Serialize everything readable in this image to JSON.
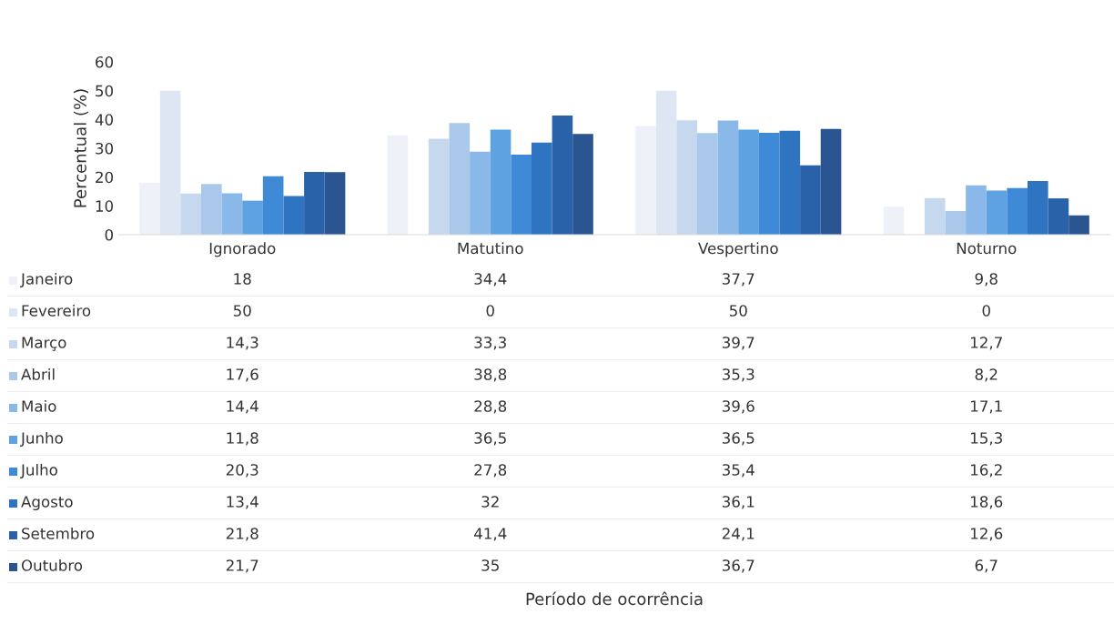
{
  "chart_data": {
    "type": "bar",
    "ylabel": "Percentual (%)",
    "annotations": [
      "Período de ocorrência"
    ],
    "categories": [
      "Ignorado",
      "Matutino",
      "Vespertino",
      "Noturno"
    ],
    "ylim": [
      0,
      60
    ],
    "yticks": [
      0,
      10,
      20,
      30,
      40,
      50,
      60
    ],
    "grid": false,
    "legend": "left",
    "series": [
      {
        "name": "Janeiro",
        "color": "#eef2f8",
        "values": [
          18,
          34.4,
          37.7,
          9.8
        ],
        "value_labels": [
          "18",
          "34,4",
          "37,7",
          "9,8"
        ]
      },
      {
        "name": "Fevereiro",
        "color": "#dde6f2",
        "values": [
          50,
          0,
          50,
          0
        ],
        "value_labels": [
          "50",
          "0",
          "50",
          "0"
        ]
      },
      {
        "name": "Março",
        "color": "#c6d8ee",
        "values": [
          14.3,
          33.3,
          39.7,
          12.7
        ],
        "value_labels": [
          "14,3",
          "33,3",
          "39,7",
          "12,7"
        ]
      },
      {
        "name": "Abril",
        "color": "#a9c8ea",
        "values": [
          17.6,
          38.8,
          35.3,
          8.2
        ],
        "value_labels": [
          "17,6",
          "38,8",
          "35,3",
          "8,2"
        ]
      },
      {
        "name": "Maio",
        "color": "#8ab8e8",
        "values": [
          14.4,
          28.8,
          39.6,
          17.1
        ],
        "value_labels": [
          "14,4",
          "28,8",
          "39,6",
          "17,1"
        ]
      },
      {
        "name": "Junho",
        "color": "#5ea2e2",
        "values": [
          11.8,
          36.5,
          36.5,
          15.3
        ],
        "value_labels": [
          "11,8",
          "36,5",
          "36,5",
          "15,3"
        ]
      },
      {
        "name": "Julho",
        "color": "#3f8ad6",
        "values": [
          20.3,
          27.8,
          35.4,
          16.2
        ],
        "value_labels": [
          "20,3",
          "27,8",
          "35,4",
          "16,2"
        ]
      },
      {
        "name": "Agosto",
        "color": "#2f74c0",
        "values": [
          13.4,
          32,
          36.1,
          18.6
        ],
        "value_labels": [
          "13,4",
          "32",
          "36,1",
          "18,6"
        ]
      },
      {
        "name": "Setembro",
        "color": "#2a62aa",
        "values": [
          21.8,
          41.4,
          24.1,
          12.6
        ],
        "value_labels": [
          "21,8",
          "41,4",
          "24,1",
          "12,6"
        ]
      },
      {
        "name": "Outubro",
        "color": "#2b5591",
        "values": [
          21.7,
          35,
          36.7,
          6.7
        ],
        "value_labels": [
          "21,7",
          "35",
          "36,7",
          "6,7"
        ]
      }
    ]
  }
}
